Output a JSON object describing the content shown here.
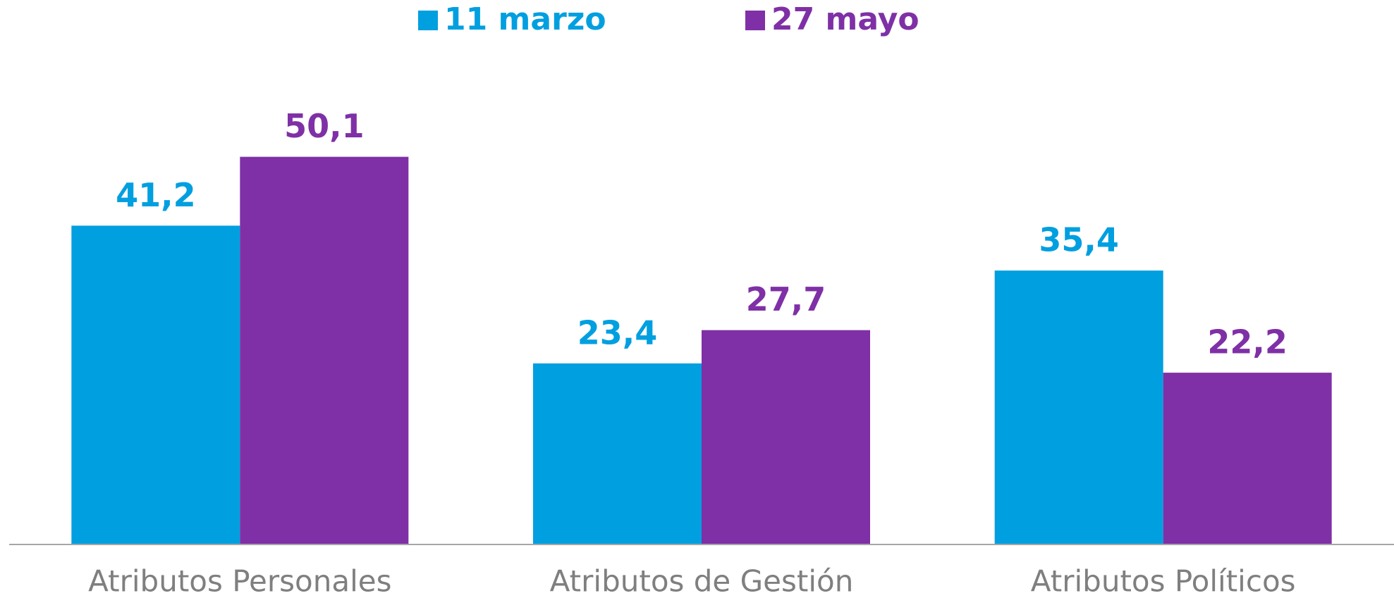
{
  "chart_data": {
    "type": "bar",
    "categories": [
      "Atributos Personales",
      "Atributos de Gestión",
      "Atributos Políticos"
    ],
    "series": [
      {
        "name": "11 marzo",
        "color": "#009fe0",
        "values": [
          41.2,
          23.4,
          35.4
        ],
        "value_labels": [
          "41,2",
          "23,4",
          "35,4"
        ]
      },
      {
        "name": "27 mayo",
        "color": "#7f30a6",
        "values": [
          50.1,
          27.7,
          22.2
        ],
        "value_labels": [
          "50,1",
          "27,7",
          "22,2"
        ]
      }
    ],
    "ylim": [
      0,
      70
    ],
    "legend": "top"
  }
}
